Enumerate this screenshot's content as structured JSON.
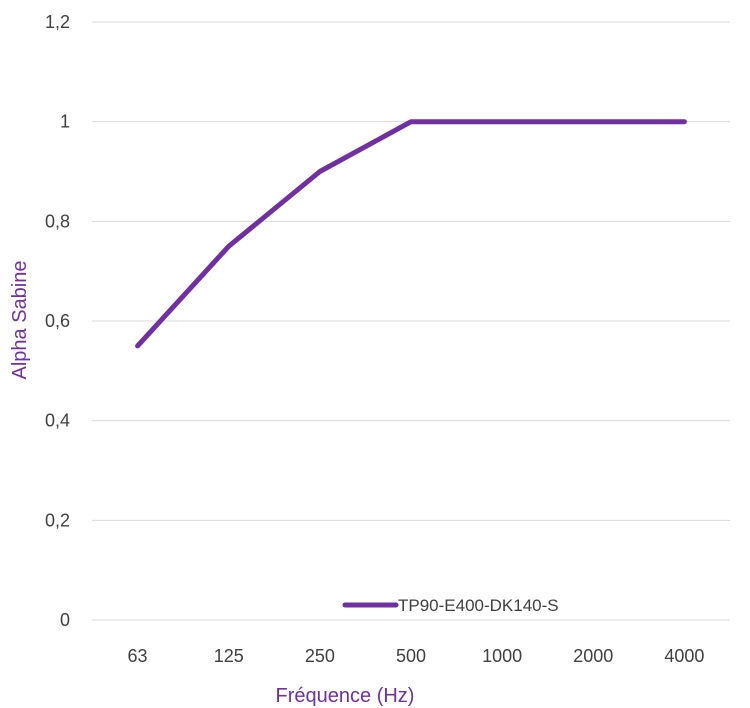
{
  "chart_data": {
    "type": "line",
    "categories": [
      "63",
      "125",
      "250",
      "500",
      "1000",
      "2000",
      "4000"
    ],
    "series": [
      {
        "name": "TP90-E400-DK140-S",
        "values": [
          0.55,
          0.75,
          0.9,
          1.0,
          1.0,
          1.0,
          1.0
        ]
      }
    ],
    "y_ticks": [
      "0",
      "0,2",
      "0,4",
      "0,6",
      "0,8",
      "1",
      "1,2"
    ],
    "ylim": [
      0,
      1.2
    ],
    "xlabel": "Fréquence (Hz)",
    "ylabel": "Alpha Sabine",
    "grid": "horizontal",
    "legend_position": "bottom-inside",
    "colors": {
      "series": "#7030a0",
      "axis_title": "#7030a0",
      "gridline": "#d9d9d9",
      "tick_label": "#404040"
    }
  }
}
